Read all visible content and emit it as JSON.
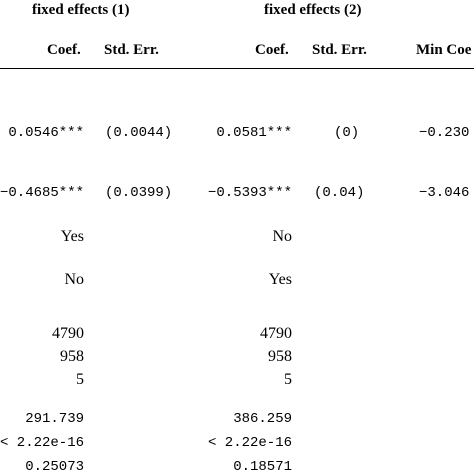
{
  "header": {
    "group1": "fixed effects (1)",
    "group2": "fixed effects (2)",
    "col_coef_1": "Coef.",
    "col_se_1": "Std. Err.",
    "col_coef_2": "Coef.",
    "col_se_2": "Std. Err.",
    "col_min_coef": "Min Coe"
  },
  "rows": {
    "r1": {
      "coef1": "0.0546***",
      "se1": "(0.0044)",
      "coef2": "0.0581***",
      "se2": "(0)",
      "min": "−0.230"
    },
    "r2": {
      "coef1": "−0.4685***",
      "se1": "(0.0399)",
      "coef2": "−0.5393***",
      "se2": "(0.04)",
      "min": "−3.046"
    },
    "fe_a": {
      "v1": "Yes",
      "v2": "No"
    },
    "fe_b": {
      "v1": "No",
      "v2": "Yes"
    },
    "n1": {
      "v1": "4790",
      "v2": "4790"
    },
    "n2": {
      "v1": "958",
      "v2": "958"
    },
    "n3": {
      "v1": "5",
      "v2": "5"
    },
    "s1": {
      "v1": "291.739",
      "v2": "386.259"
    },
    "s2": {
      "v1": "< 2.22e-16",
      "v2": "< 2.22e-16"
    },
    "s3": {
      "v1": "0.25073",
      "v2": "0.18571"
    }
  }
}
